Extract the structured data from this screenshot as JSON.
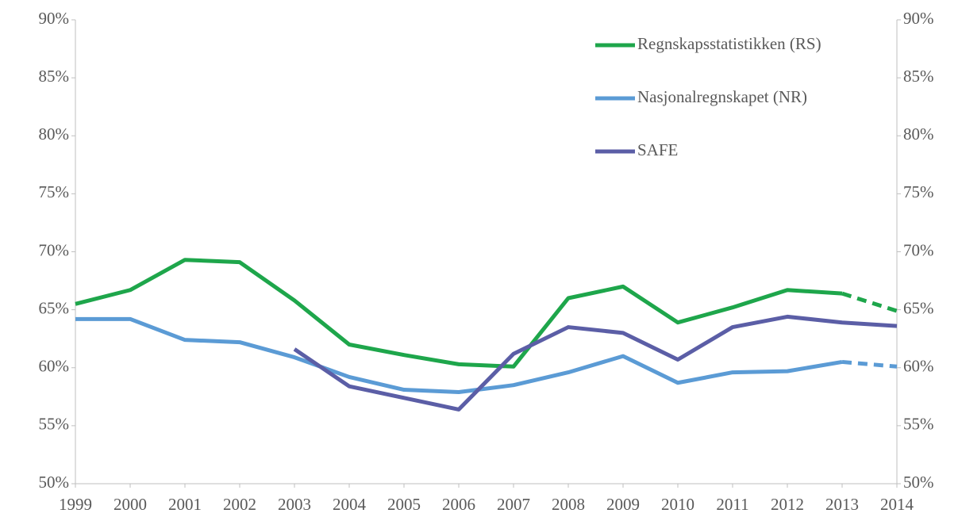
{
  "chart_data": {
    "type": "line",
    "categories": [
      "1999",
      "2000",
      "2001",
      "2002",
      "2003",
      "2004",
      "2005",
      "2006",
      "2007",
      "2008",
      "2009",
      "2010",
      "2011",
      "2012",
      "2013",
      "2014"
    ],
    "series": [
      {
        "name": "Regnskapsstatistikken (RS)",
        "color": "#1ea64b",
        "dashed_after": "2013",
        "values": [
          65.5,
          66.7,
          69.3,
          69.1,
          65.8,
          62.0,
          61.1,
          60.3,
          60.1,
          66.0,
          67.0,
          63.9,
          65.2,
          66.7,
          66.4,
          64.9
        ]
      },
      {
        "name": "Nasjonalregnskapet (NR)",
        "color": "#5b9bd5",
        "dashed_after": "2013",
        "values": [
          64.2,
          64.2,
          62.4,
          62.2,
          60.9,
          59.2,
          58.1,
          57.9,
          58.5,
          59.6,
          61.0,
          58.7,
          59.6,
          59.7,
          60.5,
          60.1
        ]
      },
      {
        "name": "SAFE",
        "color": "#5b5ea6",
        "values": [
          null,
          null,
          null,
          null,
          61.6,
          58.4,
          57.4,
          56.4,
          61.2,
          63.5,
          63.0,
          60.7,
          63.5,
          64.4,
          63.9,
          63.6
        ]
      }
    ],
    "ylim": [
      50,
      90
    ],
    "yticks": [
      {
        "value": 50,
        "label": "50%"
      },
      {
        "value": 55,
        "label": "55%"
      },
      {
        "value": 60,
        "label": "60%"
      },
      {
        "value": 65,
        "label": "65%"
      },
      {
        "value": 70,
        "label": "70%"
      },
      {
        "value": 75,
        "label": "75%"
      },
      {
        "value": 80,
        "label": "80%"
      },
      {
        "value": 85,
        "label": "85%"
      },
      {
        "value": 90,
        "label": "90%"
      }
    ],
    "y2lim": [
      50,
      90
    ],
    "y2ticks": [
      {
        "value": 50,
        "label": "50%"
      },
      {
        "value": 55,
        "label": "55%"
      },
      {
        "value": 60,
        "label": "60%"
      },
      {
        "value": 65,
        "label": "65%"
      },
      {
        "value": 70,
        "label": "70%"
      },
      {
        "value": 75,
        "label": "75%"
      },
      {
        "value": 80,
        "label": "80%"
      },
      {
        "value": 85,
        "label": "85%"
      },
      {
        "value": 90,
        "label": "90%"
      }
    ],
    "grid": false,
    "legend": "upper right"
  }
}
